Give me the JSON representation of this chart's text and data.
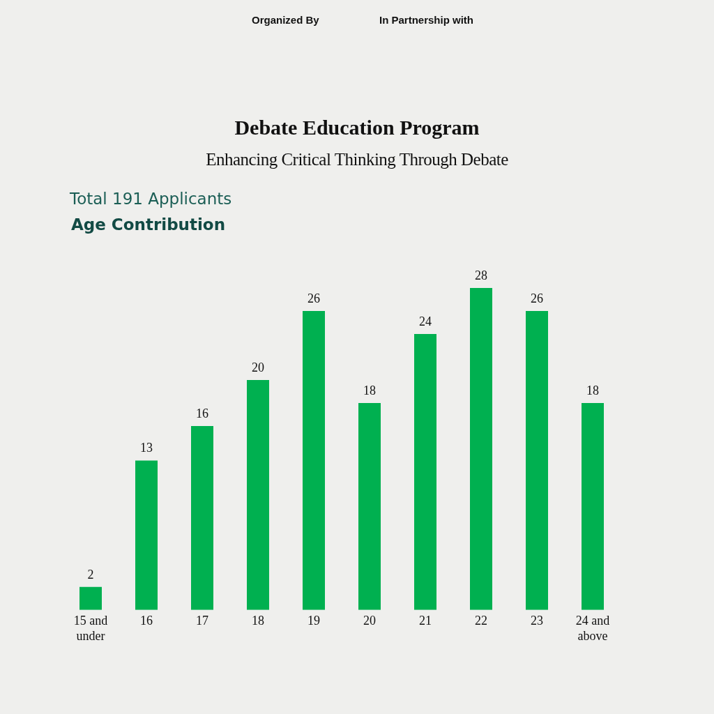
{
  "chart_data": {
    "type": "bar",
    "title": "Debate Education Program",
    "subtitle": "Enhancing Critical Thinking Through Debate",
    "annotations": [
      "Organized By",
      "In Partnership with",
      "Total 191 Applicants",
      "Age Contribution"
    ],
    "categories": [
      "15 and under",
      "16",
      "17",
      "18",
      "19",
      "20",
      "21",
      "22",
      "23",
      "24 and above"
    ],
    "values": [
      2,
      13,
      16,
      20,
      26,
      18,
      24,
      28,
      26,
      18
    ],
    "color": "#00b050",
    "data_labels": true,
    "grid": false,
    "legend": false
  }
}
